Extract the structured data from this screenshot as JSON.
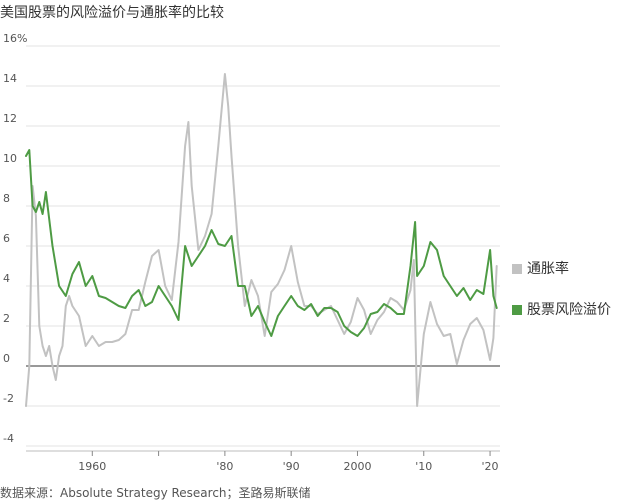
{
  "title": "美国股票的风险溢价与通胀率的比较",
  "source": "数据来源：Absolute Strategy Research；圣路易斯联储",
  "colors": {
    "inflation": "#c2c2c2",
    "equity_risk_premium": "#4e9b44",
    "gridline": "#e3e3e3",
    "zero_line": "#333333"
  },
  "chart_data": {
    "type": "line",
    "title": "美国股票的风险溢价与通胀率的比较",
    "xlabel": "",
    "ylabel": "",
    "xlim": [
      1950,
      2021.5
    ],
    "ylim": [
      -4,
      16
    ],
    "y_ticks": [
      -4,
      -2,
      0,
      2,
      4,
      6,
      8,
      10,
      12,
      14,
      16
    ],
    "y_tick_labels": [
      "-4",
      "-2",
      "0",
      "2",
      "4",
      "6",
      "8",
      "10",
      "12",
      "14",
      "16%"
    ],
    "x_ticks": [
      1960,
      1970,
      1980,
      1990,
      2000,
      2010,
      2020
    ],
    "x_tick_labels": [
      "1960",
      "",
      "'80",
      "'90",
      "2000",
      "'10",
      "'20"
    ],
    "grid": true,
    "legend_position": "right",
    "series": [
      {
        "name": "通胀率",
        "x": [
          1950,
          1950.5,
          1951,
          1951.5,
          1952,
          1952.5,
          1953,
          1953.5,
          1954,
          1954.5,
          1955,
          1955.5,
          1956,
          1956.5,
          1957,
          1958,
          1959,
          1960,
          1961,
          1962,
          1963,
          1964,
          1965,
          1966,
          1967,
          1968,
          1969,
          1970,
          1971,
          1972,
          1973,
          1974,
          1974.5,
          1975,
          1976,
          1977,
          1978,
          1979,
          1980,
          1980.5,
          1981,
          1982,
          1983,
          1984,
          1985,
          1986,
          1987,
          1988,
          1989,
          1990,
          1991,
          1992,
          1993,
          1994,
          1995,
          1996,
          1997,
          1998,
          1999,
          2000,
          2001,
          2002,
          2003,
          2004,
          2005,
          2006,
          2007,
          2008,
          2008.5,
          2009,
          2010,
          2011,
          2012,
          2013,
          2014,
          2015,
          2016,
          2017,
          2018,
          2019,
          2020,
          2020.5,
          2021
        ],
        "values": [
          -2.0,
          0.0,
          9.0,
          7.5,
          2.0,
          1.0,
          0.5,
          1.0,
          0.0,
          -0.7,
          0.5,
          1.0,
          3.0,
          3.5,
          3.0,
          2.5,
          1.0,
          1.5,
          1.0,
          1.2,
          1.2,
          1.3,
          1.6,
          2.8,
          2.8,
          4.2,
          5.5,
          5.8,
          4.0,
          3.3,
          6.2,
          11.0,
          12.2,
          9.0,
          5.8,
          6.5,
          7.6,
          11.0,
          14.6,
          13.0,
          10.5,
          6.0,
          3.0,
          4.3,
          3.5,
          1.5,
          3.7,
          4.1,
          4.8,
          6.0,
          4.2,
          3.0,
          3.0,
          2.6,
          2.8,
          3.0,
          2.3,
          1.6,
          2.2,
          3.4,
          2.8,
          1.6,
          2.3,
          2.7,
          3.4,
          3.2,
          2.8,
          3.8,
          5.3,
          -2.0,
          1.6,
          3.2,
          2.1,
          1.5,
          1.6,
          0.1,
          1.3,
          2.1,
          2.4,
          1.8,
          0.3,
          1.4,
          5.0
        ]
      },
      {
        "name": "股票风险溢价",
        "x": [
          1950,
          1950.5,
          1951,
          1951.5,
          1952,
          1952.5,
          1953,
          1954,
          1955,
          1956,
          1957,
          1958,
          1959,
          1960,
          1961,
          1962,
          1963,
          1964,
          1965,
          1966,
          1967,
          1968,
          1969,
          1970,
          1971,
          1972,
          1973,
          1974,
          1975,
          1976,
          1977,
          1978,
          1979,
          1980,
          1981,
          1982,
          1983,
          1984,
          1985,
          1986,
          1987,
          1988,
          1989,
          1990,
          1991,
          1992,
          1993,
          1994,
          1995,
          1996,
          1997,
          1998,
          1999,
          2000,
          2001,
          2002,
          2003,
          2004,
          2005,
          2006,
          2007,
          2008,
          2008.7,
          2009,
          2010,
          2011,
          2012,
          2013,
          2014,
          2015,
          2016,
          2017,
          2018,
          2019,
          2020,
          2020.5,
          2021
        ],
        "values": [
          10.5,
          10.8,
          8.0,
          7.7,
          8.2,
          7.6,
          8.7,
          6.0,
          4.0,
          3.5,
          4.6,
          5.2,
          4.0,
          4.5,
          3.5,
          3.4,
          3.2,
          3.0,
          2.9,
          3.5,
          3.8,
          3.0,
          3.2,
          4.0,
          3.5,
          3.0,
          2.3,
          6.0,
          5.0,
          5.5,
          6.0,
          6.8,
          6.1,
          6.0,
          6.5,
          4.0,
          4.0,
          2.5,
          3.0,
          2.2,
          1.5,
          2.5,
          3.0,
          3.5,
          3.0,
          2.8,
          3.1,
          2.5,
          2.9,
          2.9,
          2.7,
          2.0,
          1.7,
          1.5,
          1.9,
          2.6,
          2.7,
          3.1,
          2.9,
          2.6,
          2.6,
          5.0,
          7.2,
          4.5,
          5.0,
          6.2,
          5.8,
          4.5,
          4.0,
          3.5,
          3.9,
          3.3,
          3.8,
          3.6,
          5.8,
          3.5,
          2.9
        ]
      }
    ]
  }
}
